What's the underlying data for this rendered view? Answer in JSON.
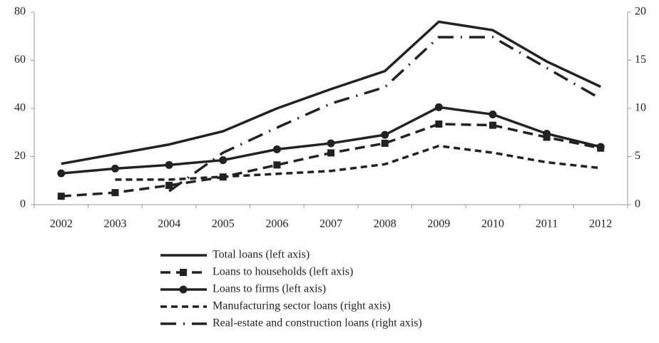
{
  "chart_data": {
    "type": "line",
    "categories": [
      "2002",
      "2003",
      "2004",
      "2005",
      "2006",
      "2007",
      "2008",
      "2009",
      "2010",
      "2011",
      "2012"
    ],
    "ylim": [
      0,
      80
    ],
    "yticks": [
      0,
      20,
      40,
      60,
      80
    ],
    "y2lim": [
      0,
      20
    ],
    "y2ticks": [
      0,
      5,
      10,
      15,
      20
    ],
    "series": [
      {
        "name": "Total loans (left axis)",
        "color": "#222",
        "dash": "solid",
        "marker": "none",
        "values": [
          17,
          21,
          25,
          30.5,
          40,
          48,
          55.5,
          76,
          72.5,
          59.5,
          49
        ]
      },
      {
        "name": "Loans to households (left axis)",
        "color": "#222",
        "dash": "dashed",
        "marker": "square",
        "values": [
          3.5,
          5,
          8,
          11.5,
          16.5,
          21.5,
          25.5,
          33.5,
          33,
          28,
          23.5
        ]
      },
      {
        "name": "Loans to firms (left axis)",
        "color": "#222",
        "dash": "solid",
        "marker": "circle",
        "values": [
          13,
          15,
          16.5,
          18.5,
          23,
          25.5,
          29,
          40.5,
          37.5,
          29.5,
          24
        ]
      },
      {
        "name": "Manufacturing sector loans (right axis)",
        "color": "#222",
        "dash": "short-dashed",
        "marker": "none",
        "axis": "y2",
        "values": [
          null,
          2.6,
          2.6,
          2.9,
          3.2,
          3.5,
          4.2,
          6.1,
          5.4,
          4.4,
          3.8
        ]
      },
      {
        "name": "Real-estate and construction loans (right axis)",
        "color": "#222",
        "dash": "dash-dot",
        "marker": "none",
        "axis": "y2",
        "values": [
          null,
          null,
          1.4,
          5.4,
          8,
          10.5,
          12.2,
          17.4,
          17.4,
          14.2,
          11
        ]
      }
    ]
  }
}
